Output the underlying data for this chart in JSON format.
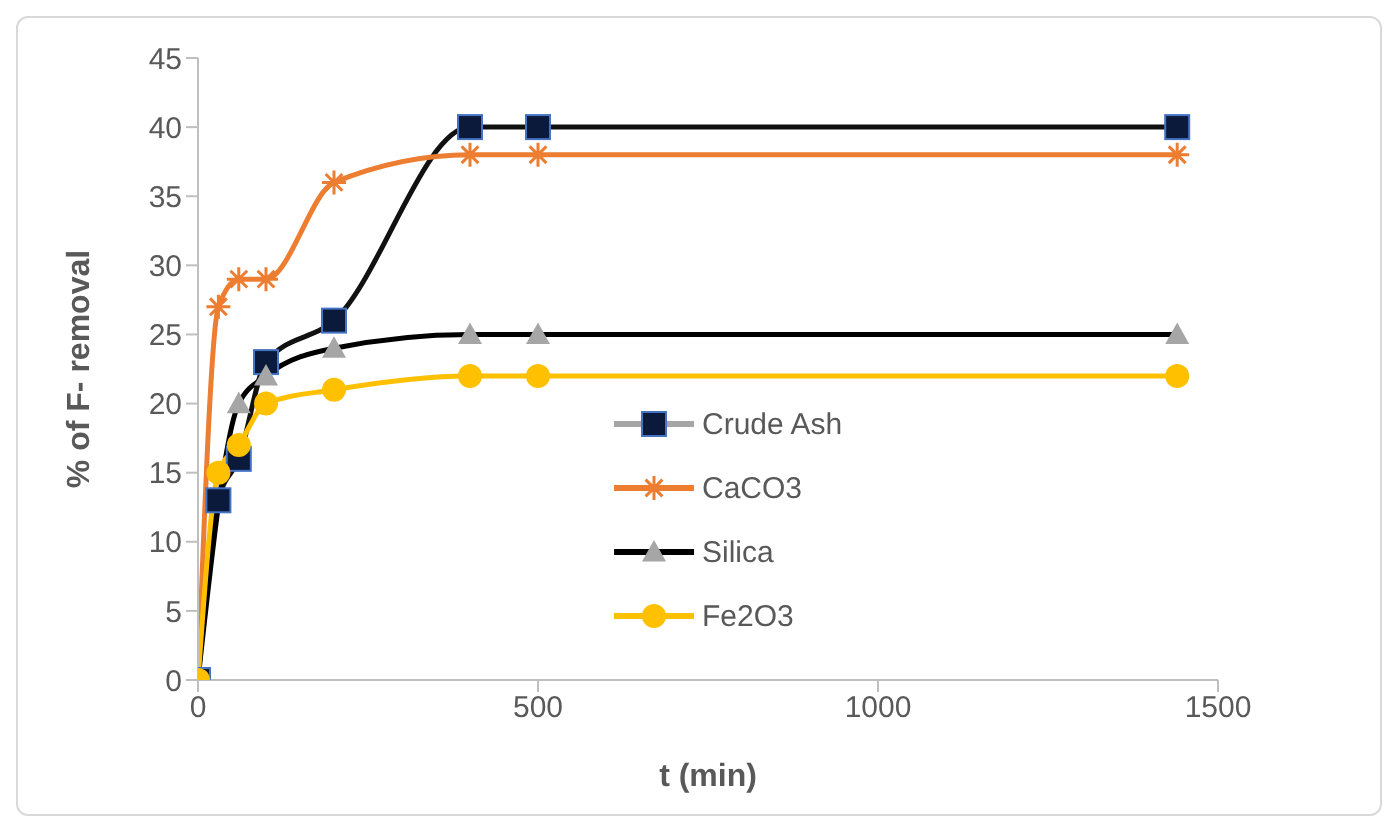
{
  "chart_data": {
    "type": "line",
    "xlabel": "t (min)",
    "ylabel": "% of F- removal",
    "x": [
      0,
      30,
      60,
      100,
      200,
      400,
      500,
      1440
    ],
    "series": [
      {
        "name": "Crude Ash",
        "color": "#111111",
        "marker": "square",
        "values": [
          0,
          13,
          16,
          23,
          26,
          40,
          40,
          40
        ]
      },
      {
        "name": "CaCO3",
        "color": "#ed7d31",
        "marker": "cross",
        "values": [
          0,
          27,
          29,
          29,
          36,
          38,
          38,
          38
        ]
      },
      {
        "name": "Silica",
        "color": "#000000",
        "marker": "triangle",
        "values": [
          0,
          null,
          20,
          22,
          24,
          25,
          25,
          25
        ]
      },
      {
        "name": "Fe2O3",
        "color": "#ffc000",
        "marker": "circle",
        "values": [
          0,
          15,
          17,
          20,
          21,
          22,
          22,
          22
        ]
      }
    ],
    "xlim": [
      0,
      1500
    ],
    "xticks": [
      0,
      500,
      1000,
      1500
    ],
    "ylim": [
      0,
      45
    ],
    "yticks": [
      0,
      5,
      10,
      15,
      20,
      25,
      30,
      35,
      40,
      45
    ],
    "legend": "right",
    "grid": false
  }
}
